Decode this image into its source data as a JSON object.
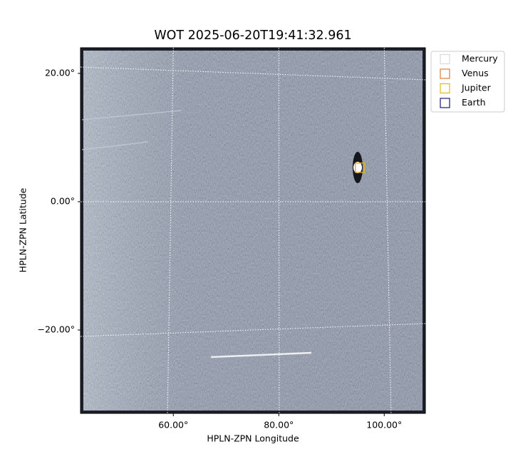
{
  "chart_data": {
    "type": "image",
    "title": "WOT 2025-06-20T19:41:32.961",
    "xlabel": "HPLN-ZPN Longitude",
    "ylabel": "HPLN-ZPN Latitude",
    "xlim": [
      42.4,
      107.8
    ],
    "ylim": [
      -33,
      24
    ],
    "xticks": [
      {
        "value": 60,
        "label": "60.00°"
      },
      {
        "value": 80,
        "label": "80.00°"
      },
      {
        "value": 100,
        "label": "100.00°"
      }
    ],
    "yticks": [
      {
        "value": -20,
        "label": "−20.00°"
      },
      {
        "value": 0,
        "label": "0.00°"
      },
      {
        "value": 20,
        "label": "20.00°"
      }
    ],
    "grid": true,
    "series": [
      {
        "name": "Mercury",
        "color": "#d9d9d9",
        "x": [],
        "y": []
      },
      {
        "name": "Venus",
        "color": "#e07b39",
        "x": [
          95.4
        ],
        "y": [
          5.3
        ]
      },
      {
        "name": "Jupiter",
        "color": "#e6b422",
        "x": [
          95.4
        ],
        "y": [
          5.3
        ]
      },
      {
        "name": "Earth",
        "color": "#1a1a7a",
        "x": [],
        "y": []
      }
    ]
  }
}
